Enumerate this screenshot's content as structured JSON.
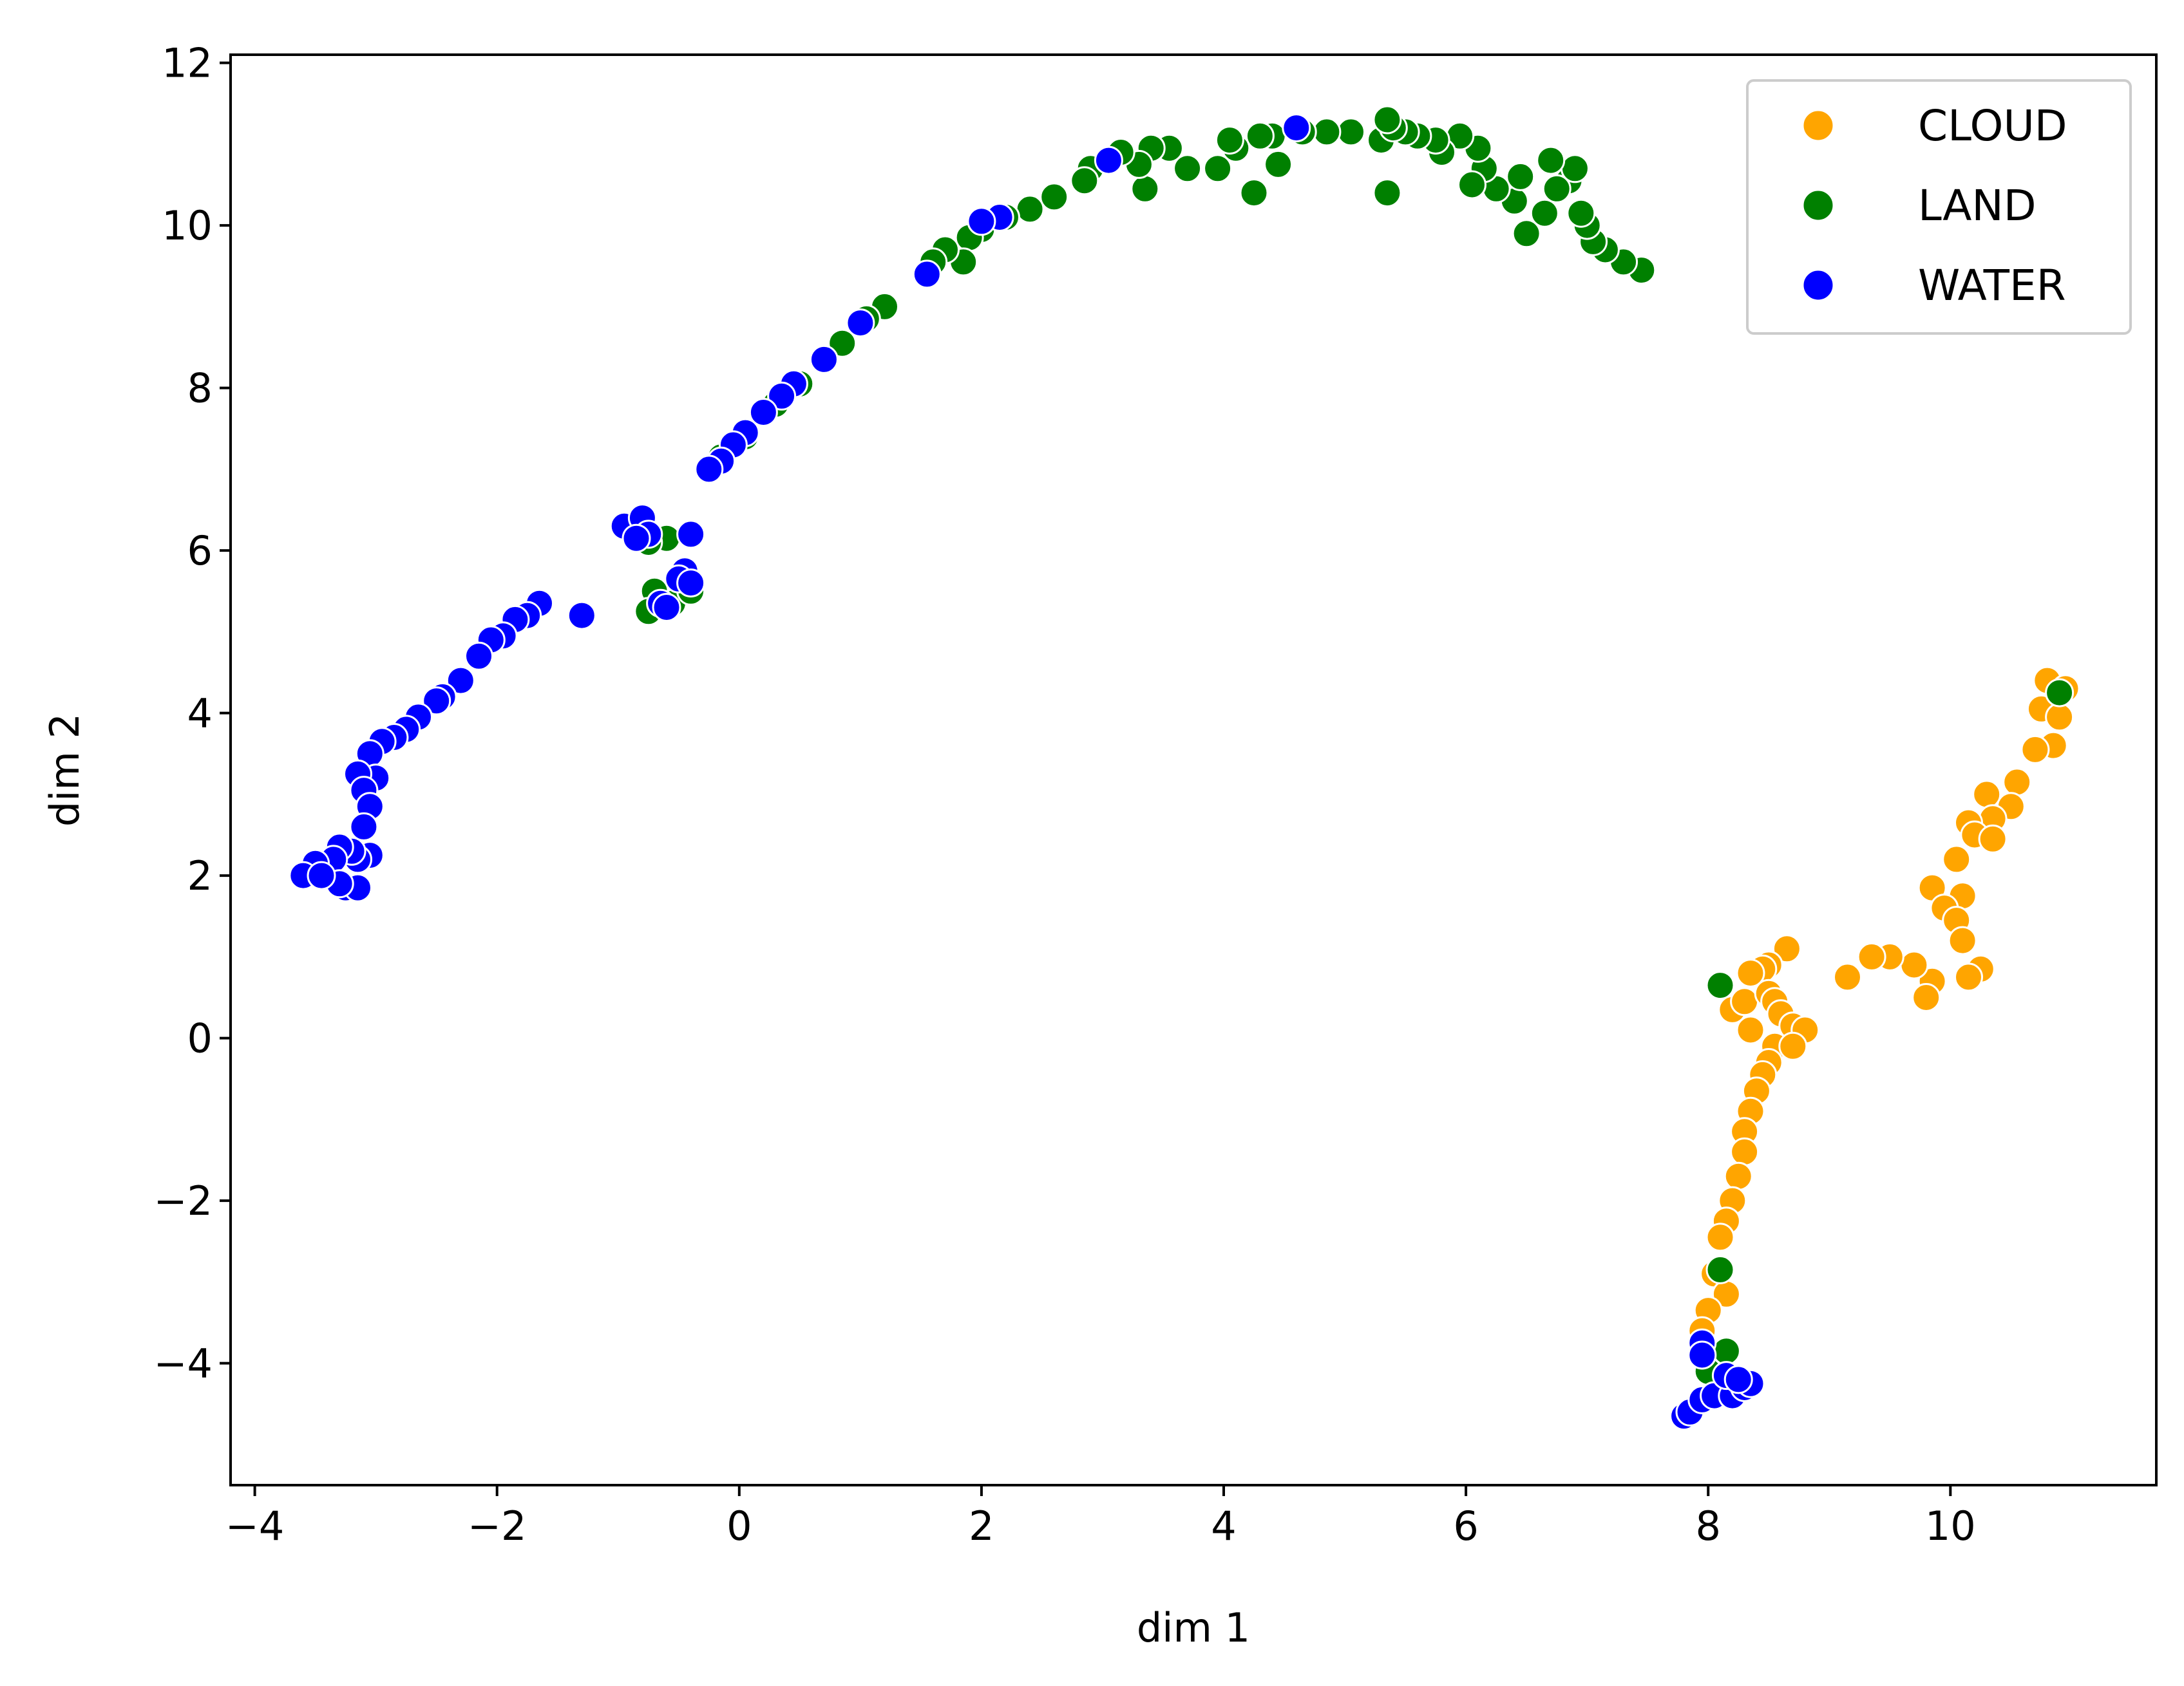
{
  "chart_data": {
    "type": "scatter",
    "title": "",
    "xlabel": "dim 1",
    "ylabel": "dim 2",
    "xlim": [
      -4.2,
      11.7
    ],
    "ylim": [
      -5.5,
      12.1
    ],
    "x_ticks": [
      -4,
      -2,
      0,
      2,
      4,
      6,
      8,
      10
    ],
    "x_tick_labels": [
      "−4",
      "−2",
      "0",
      "2",
      "4",
      "6",
      "8",
      "10"
    ],
    "y_ticks": [
      -4,
      -2,
      0,
      2,
      4,
      6,
      8,
      10,
      12
    ],
    "y_tick_labels": [
      "−4",
      "−2",
      "0",
      "2",
      "4",
      "6",
      "8",
      "10",
      "12"
    ],
    "grid": false,
    "legend_position": "top-right",
    "series": [
      {
        "name": "CLOUD",
        "color": "#ffa500",
        "points": [
          [
            10.8,
            4.4
          ],
          [
            10.95,
            4.3
          ],
          [
            10.75,
            4.05
          ],
          [
            10.9,
            3.95
          ],
          [
            10.85,
            3.6
          ],
          [
            10.7,
            3.55
          ],
          [
            10.55,
            3.15
          ],
          [
            10.5,
            2.85
          ],
          [
            10.3,
            3.0
          ],
          [
            10.35,
            2.7
          ],
          [
            10.15,
            2.65
          ],
          [
            10.2,
            2.5
          ],
          [
            10.35,
            2.45
          ],
          [
            10.05,
            2.2
          ],
          [
            10.1,
            1.75
          ],
          [
            9.85,
            1.85
          ],
          [
            9.95,
            1.6
          ],
          [
            10.05,
            1.45
          ],
          [
            10.1,
            1.2
          ],
          [
            10.25,
            0.85
          ],
          [
            10.15,
            0.75
          ],
          [
            9.85,
            0.7
          ],
          [
            9.8,
            0.5
          ],
          [
            9.7,
            0.9
          ],
          [
            9.5,
            1.0
          ],
          [
            9.35,
            1.0
          ],
          [
            9.15,
            0.75
          ],
          [
            8.65,
            1.1
          ],
          [
            8.5,
            0.9
          ],
          [
            8.45,
            0.85
          ],
          [
            8.35,
            0.8
          ],
          [
            8.2,
            0.35
          ],
          [
            8.3,
            0.45
          ],
          [
            8.5,
            0.55
          ],
          [
            8.55,
            0.45
          ],
          [
            8.35,
            0.1
          ],
          [
            8.6,
            0.3
          ],
          [
            8.7,
            0.15
          ],
          [
            8.8,
            0.1
          ],
          [
            8.55,
            -0.1
          ],
          [
            8.7,
            -0.1
          ],
          [
            8.5,
            -0.3
          ],
          [
            8.45,
            -0.45
          ],
          [
            8.4,
            -0.65
          ],
          [
            8.35,
            -0.9
          ],
          [
            8.3,
            -1.15
          ],
          [
            8.3,
            -1.4
          ],
          [
            8.25,
            -1.7
          ],
          [
            8.2,
            -2.0
          ],
          [
            8.15,
            -2.25
          ],
          [
            8.1,
            -2.45
          ],
          [
            8.05,
            -2.9
          ],
          [
            8.15,
            -3.15
          ],
          [
            8.0,
            -3.35
          ],
          [
            7.95,
            -3.6
          ],
          [
            8.05,
            -4.05
          ],
          [
            8.1,
            -4.15
          ]
        ]
      },
      {
        "name": "LAND",
        "color": "#008000",
        "points": [
          [
            7.45,
            9.45
          ],
          [
            7.3,
            9.55
          ],
          [
            7.15,
            9.7
          ],
          [
            7.05,
            9.8
          ],
          [
            7.0,
            10.0
          ],
          [
            6.95,
            10.15
          ],
          [
            6.85,
            10.55
          ],
          [
            6.9,
            10.7
          ],
          [
            6.7,
            10.8
          ],
          [
            6.75,
            10.45
          ],
          [
            6.65,
            10.15
          ],
          [
            6.5,
            9.9
          ],
          [
            6.4,
            10.3
          ],
          [
            6.45,
            10.6
          ],
          [
            6.25,
            10.45
          ],
          [
            6.15,
            10.7
          ],
          [
            6.05,
            10.5
          ],
          [
            6.1,
            10.95
          ],
          [
            5.95,
            11.1
          ],
          [
            5.8,
            10.9
          ],
          [
            5.75,
            11.05
          ],
          [
            5.6,
            11.1
          ],
          [
            5.5,
            11.15
          ],
          [
            5.35,
            10.4
          ],
          [
            5.3,
            11.05
          ],
          [
            5.4,
            11.2
          ],
          [
            5.35,
            11.3
          ],
          [
            5.05,
            11.15
          ],
          [
            4.85,
            11.15
          ],
          [
            4.65,
            11.15
          ],
          [
            4.45,
            10.75
          ],
          [
            4.4,
            11.1
          ],
          [
            4.3,
            11.1
          ],
          [
            4.25,
            10.4
          ],
          [
            4.1,
            10.95
          ],
          [
            4.05,
            11.05
          ],
          [
            3.95,
            10.7
          ],
          [
            3.7,
            10.7
          ],
          [
            3.55,
            10.95
          ],
          [
            3.4,
            10.95
          ],
          [
            3.35,
            10.45
          ],
          [
            3.3,
            10.75
          ],
          [
            3.15,
            10.9
          ],
          [
            2.9,
            10.7
          ],
          [
            2.85,
            10.55
          ],
          [
            2.6,
            10.35
          ],
          [
            2.4,
            10.2
          ],
          [
            2.2,
            10.1
          ],
          [
            2.0,
            9.95
          ],
          [
            1.9,
            9.85
          ],
          [
            1.85,
            9.55
          ],
          [
            1.7,
            9.7
          ],
          [
            1.6,
            9.55
          ],
          [
            1.2,
            9.0
          ],
          [
            1.05,
            8.85
          ],
          [
            0.85,
            8.55
          ],
          [
            0.5,
            8.05
          ],
          [
            0.3,
            7.8
          ],
          [
            0.05,
            7.4
          ],
          [
            -0.15,
            7.15
          ],
          [
            -0.6,
            6.15
          ],
          [
            -0.7,
            5.5
          ],
          [
            -0.75,
            6.1
          ],
          [
            -0.75,
            5.25
          ],
          [
            -0.55,
            5.35
          ],
          [
            -0.4,
            5.5
          ],
          [
            8.1,
            0.65
          ],
          [
            8.1,
            -2.85
          ],
          [
            8.15,
            -3.85
          ],
          [
            8.0,
            -4.1
          ],
          [
            10.9,
            4.25
          ]
        ]
      },
      {
        "name": "WATER",
        "color": "#0000ff",
        "points": [
          [
            4.6,
            11.2
          ],
          [
            3.05,
            10.8
          ],
          [
            2.15,
            10.1
          ],
          [
            2.0,
            10.05
          ],
          [
            1.55,
            9.4
          ],
          [
            1.0,
            8.8
          ],
          [
            0.7,
            8.35
          ],
          [
            0.45,
            8.05
          ],
          [
            0.35,
            7.9
          ],
          [
            0.2,
            7.7
          ],
          [
            0.05,
            7.45
          ],
          [
            -0.05,
            7.3
          ],
          [
            -0.15,
            7.1
          ],
          [
            -0.25,
            7.0
          ],
          [
            -0.95,
            6.3
          ],
          [
            -0.8,
            6.4
          ],
          [
            -0.75,
            6.2
          ],
          [
            -0.85,
            6.15
          ],
          [
            -0.4,
            6.2
          ],
          [
            -0.45,
            5.75
          ],
          [
            -0.5,
            5.65
          ],
          [
            -0.4,
            5.6
          ],
          [
            -0.65,
            5.35
          ],
          [
            -0.6,
            5.3
          ],
          [
            -1.3,
            5.2
          ],
          [
            -1.65,
            5.35
          ],
          [
            -1.75,
            5.2
          ],
          [
            -1.85,
            5.15
          ],
          [
            -1.95,
            4.95
          ],
          [
            -2.05,
            4.9
          ],
          [
            -2.15,
            4.7
          ],
          [
            -2.3,
            4.4
          ],
          [
            -2.45,
            4.2
          ],
          [
            -2.5,
            4.15
          ],
          [
            -2.65,
            3.95
          ],
          [
            -2.75,
            3.8
          ],
          [
            -2.85,
            3.7
          ],
          [
            -2.95,
            3.65
          ],
          [
            -3.05,
            3.5
          ],
          [
            -3.0,
            3.2
          ],
          [
            -3.15,
            3.25
          ],
          [
            -3.1,
            3.05
          ],
          [
            -3.05,
            2.85
          ],
          [
            -3.1,
            2.6
          ],
          [
            -3.05,
            2.25
          ],
          [
            -3.15,
            2.2
          ],
          [
            -3.2,
            2.3
          ],
          [
            -3.3,
            2.35
          ],
          [
            -3.35,
            2.2
          ],
          [
            -3.25,
            1.85
          ],
          [
            -3.15,
            1.85
          ],
          [
            -3.3,
            1.9
          ],
          [
            -3.5,
            2.15
          ],
          [
            -3.6,
            2.0
          ],
          [
            -3.45,
            2.0
          ],
          [
            7.8,
            -4.65
          ],
          [
            7.85,
            -4.6
          ],
          [
            7.95,
            -4.45
          ],
          [
            8.05,
            -4.4
          ],
          [
            8.2,
            -4.4
          ],
          [
            8.3,
            -4.3
          ],
          [
            8.35,
            -4.25
          ],
          [
            8.15,
            -4.15
          ],
          [
            8.25,
            -4.2
          ],
          [
            7.95,
            -3.75
          ],
          [
            7.95,
            -3.9
          ]
        ]
      }
    ]
  }
}
